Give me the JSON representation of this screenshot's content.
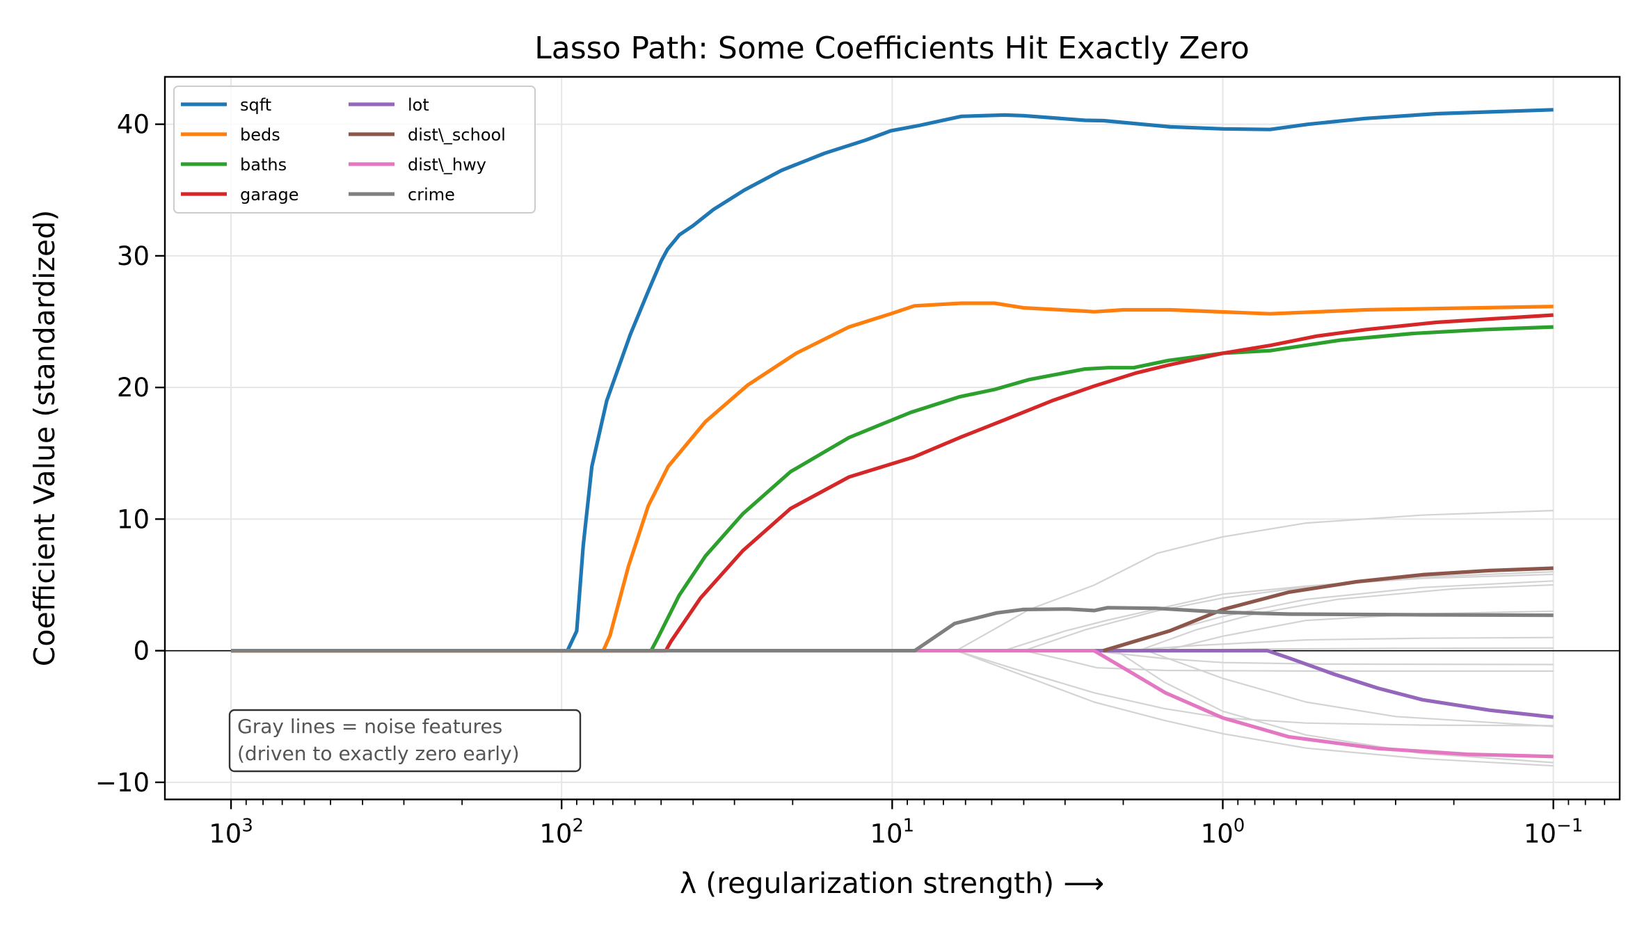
{
  "chart_data": {
    "type": "line",
    "title": "Lasso Path: Some Coefficients Hit Exactly Zero",
    "xlabel": "λ (regularization strength)  ⟶",
    "ylabel": "Coefficient Value (standardized)",
    "xscale": "log",
    "x_inverted": true,
    "xlim": [
      1585,
      0.063
    ],
    "ylim": [
      -11.3,
      43.6
    ],
    "grid": true,
    "xticks": [
      {
        "value": 1000,
        "base": "10",
        "exp": "3"
      },
      {
        "value": 100,
        "base": "10",
        "exp": "2"
      },
      {
        "value": 10,
        "base": "10",
        "exp": "1"
      },
      {
        "value": 1,
        "base": "10",
        "exp": "0"
      },
      {
        "value": 0.1,
        "base": "10",
        "exp": "−1"
      }
    ],
    "yticks": [
      {
        "value": -10,
        "label": "−10"
      },
      {
        "value": 0,
        "label": "0"
      },
      {
        "value": 10,
        "label": "10"
      },
      {
        "value": 20,
        "label": "20"
      },
      {
        "value": 30,
        "label": "30"
      },
      {
        "value": 40,
        "label": "40"
      }
    ],
    "zero_line": true,
    "legend": {
      "placement": "top-left",
      "columns": 2
    },
    "annotation": {
      "lines": [
        "Gray lines = noise features",
        "(driven to exactly zero early)"
      ],
      "placement": "bottom-left"
    },
    "series": [
      {
        "name": "sqft",
        "color": "#1f77b4",
        "points": [
          [
            1000,
            0
          ],
          [
            96,
            0
          ],
          [
            90,
            1.5
          ],
          [
            86,
            8
          ],
          [
            81,
            14
          ],
          [
            73,
            19
          ],
          [
            62,
            24
          ],
          [
            54.5,
            27.4
          ],
          [
            50,
            29.6
          ],
          [
            47.8,
            30.5
          ],
          [
            44,
            31.6
          ],
          [
            40,
            32.3
          ],
          [
            34.8,
            33.5
          ],
          [
            28,
            35
          ],
          [
            21.6,
            36.5
          ],
          [
            16,
            37.8
          ],
          [
            12,
            38.8
          ],
          [
            10.1,
            39.5
          ],
          [
            8.3,
            39.9
          ],
          [
            6.18,
            40.6
          ],
          [
            4.57,
            40.7
          ],
          [
            4.01,
            40.65
          ],
          [
            2.61,
            40.3
          ],
          [
            2.29,
            40.27
          ],
          [
            1.44,
            39.8
          ],
          [
            1.0,
            39.65
          ],
          [
            0.72,
            39.6
          ],
          [
            0.55,
            40.0
          ],
          [
            0.37,
            40.44
          ],
          [
            0.226,
            40.8
          ],
          [
            0.1,
            41.1
          ]
        ]
      },
      {
        "name": "beds",
        "color": "#ff7f0e",
        "points": [
          [
            1000,
            0
          ],
          [
            74.8,
            0
          ],
          [
            71.4,
            1.15
          ],
          [
            62.8,
            6.4
          ],
          [
            54.7,
            11.0
          ],
          [
            47.6,
            14.0
          ],
          [
            36.7,
            17.4
          ],
          [
            27.3,
            20.2
          ],
          [
            19.5,
            22.6
          ],
          [
            13.5,
            24.6
          ],
          [
            10.1,
            25.6
          ],
          [
            8.57,
            26.2
          ],
          [
            6.18,
            26.4
          ],
          [
            4.9,
            26.4
          ],
          [
            4.01,
            26.05
          ],
          [
            2.61,
            25.8
          ],
          [
            2.45,
            25.75
          ],
          [
            2.0,
            25.9
          ],
          [
            1.44,
            25.9
          ],
          [
            0.72,
            25.6
          ],
          [
            0.37,
            25.9
          ],
          [
            0.1,
            26.15
          ]
        ]
      },
      {
        "name": "baths",
        "color": "#2ca02c",
        "points": [
          [
            1000,
            0
          ],
          [
            53.6,
            0
          ],
          [
            51.2,
            0.95
          ],
          [
            44.1,
            4.2
          ],
          [
            36.7,
            7.2
          ],
          [
            28.3,
            10.4
          ],
          [
            20.3,
            13.6
          ],
          [
            13.5,
            16.2
          ],
          [
            8.8,
            18.1
          ],
          [
            6.24,
            19.3
          ],
          [
            4.9,
            19.85
          ],
          [
            3.85,
            20.6
          ],
          [
            2.61,
            21.4
          ],
          [
            2.22,
            21.5
          ],
          [
            1.86,
            21.5
          ],
          [
            1.46,
            22.05
          ],
          [
            1.0,
            22.6
          ],
          [
            0.716,
            22.8
          ],
          [
            0.44,
            23.6
          ],
          [
            0.266,
            24.1
          ],
          [
            0.162,
            24.4
          ],
          [
            0.1,
            24.6
          ]
        ]
      },
      {
        "name": "garage",
        "color": "#d62728",
        "points": [
          [
            1000,
            0
          ],
          [
            48.4,
            0
          ],
          [
            46.7,
            0.7
          ],
          [
            38.0,
            4.0
          ],
          [
            28.3,
            7.6
          ],
          [
            20.3,
            10.8
          ],
          [
            13.5,
            13.2
          ],
          [
            8.63,
            14.7
          ],
          [
            6.24,
            16.2
          ],
          [
            4.51,
            17.6
          ],
          [
            3.28,
            19.0
          ],
          [
            2.45,
            20.1
          ],
          [
            1.83,
            21.1
          ],
          [
            1.46,
            21.7
          ],
          [
            1.0,
            22.6
          ],
          [
            0.716,
            23.2
          ],
          [
            0.52,
            23.9
          ],
          [
            0.37,
            24.4
          ],
          [
            0.226,
            24.95
          ],
          [
            0.1,
            25.5
          ]
        ]
      },
      {
        "name": "lot",
        "color": "#9467bd",
        "points": [
          [
            2.45,
            0
          ],
          [
            0.733,
            0
          ],
          [
            0.63,
            -0.56
          ],
          [
            0.46,
            -1.79
          ],
          [
            0.339,
            -2.85
          ],
          [
            0.249,
            -3.73
          ],
          [
            0.156,
            -4.52
          ],
          [
            0.1,
            -5.05
          ]
        ]
      },
      {
        "name": "dist\\_school",
        "color": "#8c564b",
        "points": [
          [
            2.3,
            0
          ],
          [
            1.45,
            1.5
          ],
          [
            1.0,
            3.13
          ],
          [
            0.63,
            4.45
          ],
          [
            0.394,
            5.24
          ],
          [
            0.249,
            5.77
          ],
          [
            0.156,
            6.09
          ],
          [
            0.1,
            6.27
          ]
        ]
      },
      {
        "name": "dist\\_hwy",
        "color": "#e377c2",
        "points": [
          [
            8.55,
            0
          ],
          [
            2.45,
            0
          ],
          [
            1.91,
            -1.6
          ],
          [
            1.49,
            -3.2
          ],
          [
            1.0,
            -5.1
          ],
          [
            0.63,
            -6.55
          ],
          [
            0.339,
            -7.43
          ],
          [
            0.182,
            -7.87
          ],
          [
            0.1,
            -8.04
          ]
        ]
      },
      {
        "name": "crime",
        "color": "#7f7f7f",
        "points": [
          [
            1000,
            0
          ],
          [
            8.55,
            0
          ],
          [
            6.47,
            2.07
          ],
          [
            4.83,
            2.87
          ],
          [
            4.02,
            3.13
          ],
          [
            2.95,
            3.17
          ],
          [
            2.45,
            3.05
          ],
          [
            2.23,
            3.27
          ],
          [
            1.59,
            3.22
          ],
          [
            1.0,
            2.92
          ],
          [
            0.63,
            2.78
          ],
          [
            0.249,
            2.73
          ],
          [
            0.1,
            2.69
          ]
        ]
      }
    ],
    "noise_series": {
      "color": "#d3d3d3",
      "lines": [
        [
          [
            6.4,
            0
          ],
          [
            3.85,
            3.13
          ],
          [
            2.45,
            4.98
          ],
          [
            1.58,
            7.4
          ],
          [
            1.0,
            8.65
          ],
          [
            0.56,
            9.7
          ],
          [
            0.25,
            10.3
          ],
          [
            0.1,
            10.65
          ]
        ],
        [
          [
            4.6,
            0
          ],
          [
            3.0,
            1.5
          ],
          [
            2.22,
            2.33
          ],
          [
            1.0,
            4.3
          ],
          [
            0.56,
            4.9
          ],
          [
            0.25,
            5.6
          ],
          [
            0.1,
            6.0
          ]
        ],
        [
          [
            4.0,
            0
          ],
          [
            2.6,
            1.6
          ],
          [
            1.6,
            3.0
          ],
          [
            1.0,
            4.0
          ],
          [
            0.5,
            5.0
          ],
          [
            0.25,
            5.5
          ],
          [
            0.1,
            5.8
          ]
        ],
        [
          [
            2.2,
            0
          ],
          [
            1.5,
            1.4
          ],
          [
            1.0,
            2.6
          ],
          [
            0.56,
            3.9
          ],
          [
            0.25,
            4.8
          ],
          [
            0.1,
            5.3
          ]
        ],
        [
          [
            1.8,
            0
          ],
          [
            1.2,
            1.6
          ],
          [
            0.8,
            2.8
          ],
          [
            0.45,
            3.9
          ],
          [
            0.2,
            4.7
          ],
          [
            0.1,
            5.0
          ]
        ],
        [
          [
            1.5,
            0
          ],
          [
            1.0,
            1.1
          ],
          [
            0.56,
            2.3
          ],
          [
            0.25,
            2.8
          ],
          [
            0.1,
            3.0
          ]
        ],
        [
          [
            2.0,
            0
          ],
          [
            1.2,
            0.4
          ],
          [
            0.56,
            0.82
          ],
          [
            0.25,
            0.95
          ],
          [
            0.1,
            1.0
          ]
        ],
        [
          [
            1.6,
            0
          ],
          [
            0.8,
            0.12
          ],
          [
            0.3,
            0.18
          ],
          [
            0.1,
            0.2
          ]
        ],
        [
          [
            2.5,
            0
          ],
          [
            1.5,
            -0.6
          ],
          [
            1.0,
            -0.9
          ],
          [
            0.5,
            -1.02
          ],
          [
            0.1,
            -1.05
          ]
        ],
        [
          [
            4.0,
            0
          ],
          [
            3.0,
            -0.7
          ],
          [
            2.4,
            -1.3
          ],
          [
            1.5,
            -1.5
          ],
          [
            0.5,
            -1.55
          ],
          [
            0.1,
            -1.55
          ]
        ],
        [
          [
            1.7,
            0
          ],
          [
            1.0,
            -2.1
          ],
          [
            0.56,
            -3.9
          ],
          [
            0.3,
            -5.0
          ],
          [
            0.1,
            -5.75
          ]
        ],
        [
          [
            6.4,
            0
          ],
          [
            4.0,
            -1.6
          ],
          [
            2.45,
            -3.2
          ],
          [
            1.5,
            -4.4
          ],
          [
            1.0,
            -5.1
          ],
          [
            0.56,
            -5.5
          ],
          [
            0.25,
            -5.65
          ],
          [
            0.1,
            -5.7
          ]
        ],
        [
          [
            6.4,
            0
          ],
          [
            4.0,
            -1.9
          ],
          [
            2.45,
            -3.9
          ],
          [
            1.5,
            -5.3
          ],
          [
            1.0,
            -6.3
          ],
          [
            0.56,
            -7.4
          ],
          [
            0.25,
            -8.2
          ],
          [
            0.1,
            -8.75
          ]
        ],
        [
          [
            2.1,
            0
          ],
          [
            1.5,
            -2.4
          ],
          [
            1.0,
            -4.6
          ],
          [
            0.56,
            -6.4
          ],
          [
            0.25,
            -7.8
          ],
          [
            0.1,
            -8.5
          ]
        ]
      ]
    }
  }
}
